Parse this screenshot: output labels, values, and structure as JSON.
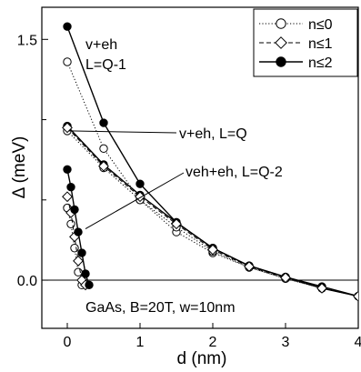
{
  "chart_data": {
    "type": "line",
    "xlabel": "d (nm)",
    "ylabel": "Δ (meV)",
    "xlim": [
      -0.35,
      4.0
    ],
    "ylim": [
      -0.3,
      1.7
    ],
    "x_ticks": [
      0,
      1,
      2,
      3,
      4
    ],
    "x_tick_labels": [
      "0",
      "1",
      "2",
      "3",
      "4"
    ],
    "y_ticks": [
      0.0,
      1.5
    ],
    "y_tick_labels": [
      "0.0",
      "1.5"
    ],
    "y_minor_ticks": [
      0.5,
      1.0
    ],
    "grid": false,
    "zero_line": true,
    "legend_position": "top-right",
    "legend": [
      {
        "label": "n≤0",
        "marker": "open-circle",
        "line": "dotted"
      },
      {
        "label": "n≤1",
        "marker": "open-diamond",
        "line": "dashed"
      },
      {
        "label": "n≤2",
        "marker": "filled-circle",
        "line": "solid"
      }
    ],
    "annotations": {
      "top": [
        "v+eh",
        "L=Q-1"
      ],
      "middle": "v+eh, L=Q",
      "lower": "veh+eh, L=Q-2",
      "footer": "GaAs, B=20T, w=10nm"
    },
    "series": [
      {
        "group": "L=Q-1",
        "legend": "n≤0",
        "x": [
          0,
          0.5,
          1,
          1.5,
          2,
          2.5,
          3,
          3.5,
          4
        ],
        "y": [
          1.36,
          0.82,
          0.5,
          0.3,
          0.17,
          0.08,
          0.01,
          -0.05,
          -0.1
        ]
      },
      {
        "group": "L=Q-1",
        "legend": "n≤2",
        "x": [
          0,
          0.5,
          1,
          1.5,
          2,
          2.5,
          3,
          3.5,
          4
        ],
        "y": [
          1.58,
          0.98,
          0.6,
          0.36,
          0.2,
          0.09,
          0.02,
          -0.04,
          -0.1
        ]
      },
      {
        "group": "L=Q",
        "legend": "n≤0",
        "x": [
          0,
          0.5,
          1,
          1.5,
          2,
          2.5,
          3,
          3.5,
          4
        ],
        "y": [
          0.93,
          0.7,
          0.5,
          0.33,
          0.18,
          0.08,
          0.01,
          -0.05,
          -0.1
        ]
      },
      {
        "group": "L=Q",
        "legend": "n≤2",
        "x": [
          0,
          0.5,
          1,
          1.5,
          2,
          2.5,
          3,
          3.5,
          4
        ],
        "y": [
          0.96,
          0.72,
          0.53,
          0.36,
          0.2,
          0.09,
          0.02,
          -0.05,
          -0.1
        ]
      },
      {
        "group": "L=Q",
        "legend": "n≤1",
        "x": [
          0,
          0.5,
          1,
          1.5,
          2,
          2.5,
          3,
          3.5,
          4
        ],
        "y": [
          0.95,
          0.71,
          0.52,
          0.35,
          0.19,
          0.085,
          0.015,
          -0.05,
          -0.1
        ]
      },
      {
        "group": "L=Q-2",
        "legend": "n≤0",
        "x": [
          0,
          0.05,
          0.1,
          0.15,
          0.2
        ],
        "y": [
          0.45,
          0.35,
          0.2,
          0.05,
          -0.03
        ]
      },
      {
        "group": "L=Q-2",
        "legend": "n≤1",
        "x": [
          0,
          0.05,
          0.1,
          0.15,
          0.2,
          0.25
        ],
        "y": [
          0.52,
          0.42,
          0.27,
          0.12,
          0.0,
          -0.03
        ]
      },
      {
        "group": "L=Q-2",
        "legend": "n≤2",
        "x": [
          0,
          0.05,
          0.1,
          0.15,
          0.2,
          0.25,
          0.3
        ],
        "y": [
          0.69,
          0.58,
          0.44,
          0.3,
          0.17,
          0.04,
          -0.03
        ]
      }
    ]
  }
}
